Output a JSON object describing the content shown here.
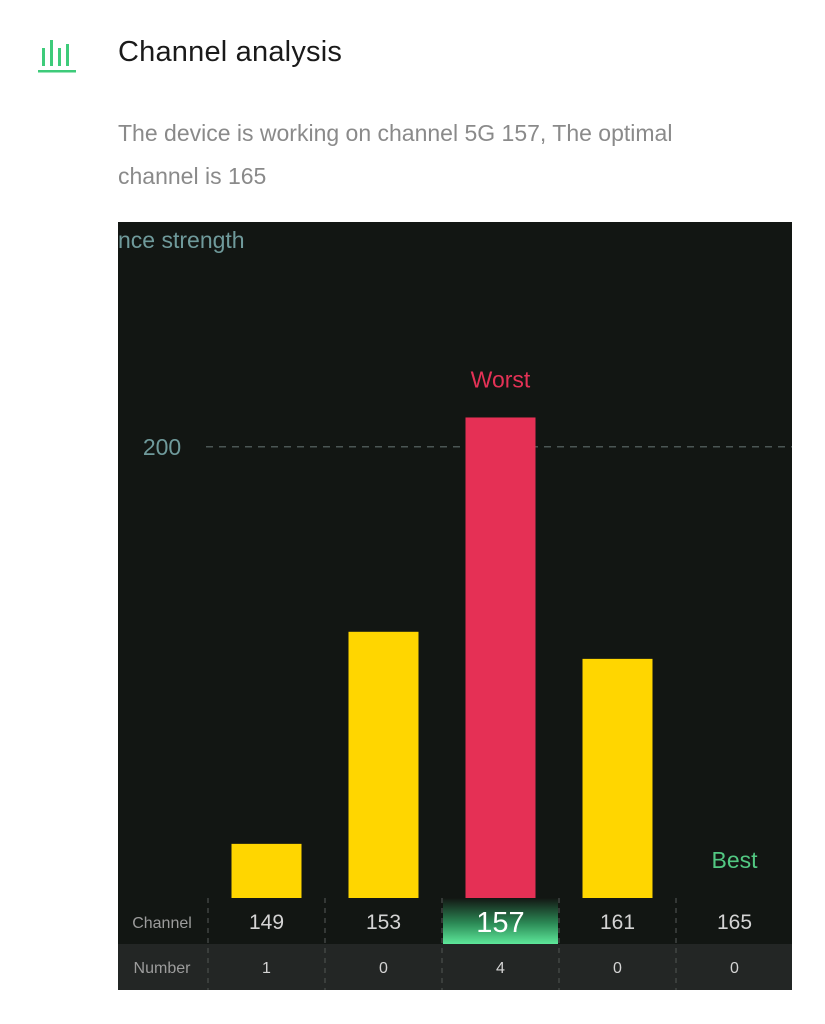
{
  "header": {
    "icon": "bar-chart-icon",
    "title": "Channel analysis"
  },
  "summary": "The device is working on channel 5G 157, The optimal channel is 165",
  "colors": {
    "accent": "#3ecb7a",
    "bar_normal": "#ffd600",
    "bar_worst": "#e53055",
    "best": "#52c882",
    "panel_bg": "#121613"
  },
  "chart_data": {
    "type": "bar",
    "ylabel": "Interference strength",
    "ylabel_visible": "nce strength",
    "ylim": [
      0,
      250
    ],
    "gridline_values": [
      200
    ],
    "gridline_labels": [
      "200"
    ],
    "categories": [
      "149",
      "153",
      "157",
      "161",
      "165"
    ],
    "values": [
      24,
      118,
      213,
      106,
      0
    ],
    "network_counts": [
      "1",
      "0",
      "4",
      "0",
      "0"
    ],
    "selected_channel": "157",
    "worst": {
      "channel": "157",
      "label": "Worst"
    },
    "best": {
      "channel": "165",
      "label": "Best"
    },
    "row_headers": {
      "channel": "Channel",
      "number": "Number"
    }
  }
}
